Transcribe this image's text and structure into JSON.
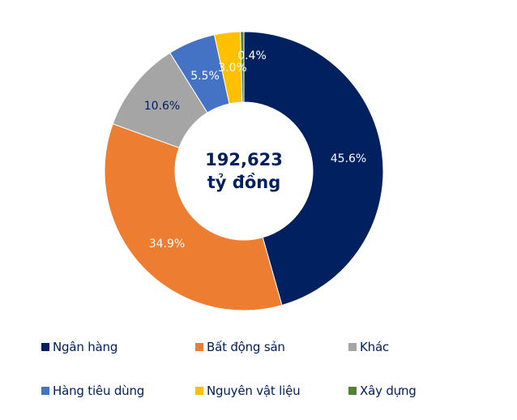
{
  "chart_data": {
    "type": "pie",
    "subtype": "donut",
    "title": "",
    "center_label": {
      "value": "192,623",
      "unit": "tỷ đồng"
    },
    "start_angle_deg": 0,
    "direction": "clockwise",
    "categories": [
      "Ngân hàng",
      "Bất động sản",
      "Khác",
      "Hàng tiêu dùng",
      "Nguyên vật liệu",
      "Xây dựng"
    ],
    "values": [
      45.6,
      34.9,
      10.6,
      5.5,
      3.0,
      0.4
    ],
    "labels": [
      "45.6%",
      "34.9%",
      "10.6%",
      "5.5%",
      "3.0%",
      "0.4%"
    ],
    "colors": [
      "#002060",
      "#ED7D31",
      "#A5A5A5",
      "#4472C4",
      "#FFC000",
      "#548235"
    ],
    "label_colors": [
      "#FFFFFF",
      "#FFFFFF",
      "#002060",
      "#FFFFFF",
      "#FFFFFF",
      "#FFFFFF"
    ],
    "legend_position": "bottom",
    "legend_columns": 3
  },
  "legend": {
    "items": [
      {
        "label": "Ngân hàng",
        "color": "#002060"
      },
      {
        "label": "Bất động sản",
        "color": "#ED7D31"
      },
      {
        "label": "Khác",
        "color": "#A5A5A5"
      },
      {
        "label": "Hàng tiêu dùng",
        "color": "#4472C4"
      },
      {
        "label": "Nguyên vật liệu",
        "color": "#FFC000"
      },
      {
        "label": "Xây dựng",
        "color": "#548235"
      }
    ]
  }
}
